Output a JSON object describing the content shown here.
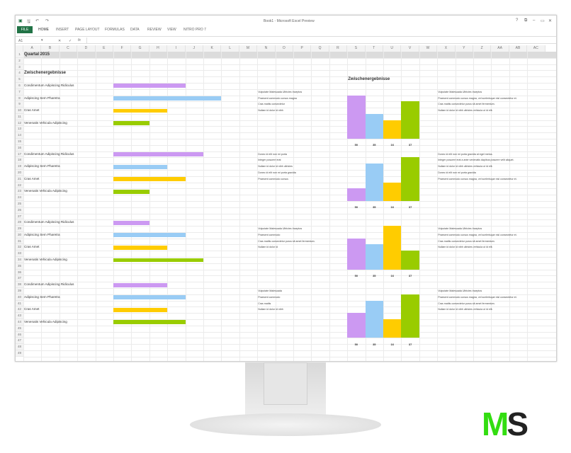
{
  "window": {
    "title": "Book1 - Microsoft Excel Preview",
    "controls": [
      "?",
      "⧉",
      "–",
      "▭",
      "✕"
    ]
  },
  "ribbon": {
    "file": "FILE",
    "tabs": [
      "HOME",
      "INSERT",
      "PAGE LAYOUT",
      "FORMULAS",
      "DATA",
      "REVIEW",
      "VIEW",
      "NITRO PRO 7"
    ]
  },
  "formula_bar": {
    "name_box": "A1",
    "fx": "fx",
    "value": ""
  },
  "columns": [
    "A",
    "B",
    "C",
    "D",
    "E",
    "F",
    "G",
    "H",
    "I",
    "J",
    "K",
    "L",
    "M",
    "N",
    "O",
    "P",
    "Q",
    "R",
    "S",
    "T",
    "U",
    "V",
    "W",
    "X",
    "Y",
    "Z",
    "AA",
    "AB",
    "AC"
  ],
  "row_count": 49,
  "colors": {
    "purple": "#cc99f2",
    "blue": "#99ccf5",
    "yellow": "#ffcc00",
    "green": "#99cc00",
    "accent": "#217346"
  },
  "cells": [
    {
      "row": 1,
      "col": "A",
      "text": "Quartal 2015",
      "style": "bold"
    },
    {
      "row": 4,
      "col": "A",
      "text": "Zwischenergebnisse",
      "style": "bold"
    },
    {
      "row": 5,
      "col": "S",
      "text": "Zwischenergebnisse",
      "style": "bold"
    },
    {
      "row": 6,
      "col": "A",
      "text": "Condimentum Adipiscing Ridiculus"
    },
    {
      "row": 8,
      "col": "A",
      "text": "Adipiscing Sem Pharetra"
    },
    {
      "row": 10,
      "col": "A",
      "text": "Cras Amet"
    },
    {
      "row": 12,
      "col": "A",
      "text": "Venenatis Vehicula Adipiscing"
    },
    {
      "row": 17,
      "col": "A",
      "text": "Condimentum Adipiscing Ridiculus"
    },
    {
      "row": 19,
      "col": "A",
      "text": "Adipiscing Sem Pharetra"
    },
    {
      "row": 21,
      "col": "A",
      "text": "Cras Amet"
    },
    {
      "row": 23,
      "col": "A",
      "text": "Venenatis Vehicula Adipiscing"
    },
    {
      "row": 28,
      "col": "A",
      "text": "Condimentum Adipiscing Ridiculus"
    },
    {
      "row": 30,
      "col": "A",
      "text": "Adipiscing Sem Pharetra"
    },
    {
      "row": 32,
      "col": "A",
      "text": "Cras Amet"
    },
    {
      "row": 34,
      "col": "A",
      "text": "Venenatis Vehicula Adipiscing"
    },
    {
      "row": 38,
      "col": "A",
      "text": "Condimentum Adipiscing Ridiculus"
    },
    {
      "row": 40,
      "col": "A",
      "text": "Adipiscing Sem Pharetra"
    },
    {
      "row": 42,
      "col": "A",
      "text": "Cras Amet"
    },
    {
      "row": 44,
      "col": "A",
      "text": "Venenatis Vehicula Adipiscing"
    },
    {
      "row": 7,
      "col": "N",
      "text": "Vulputate Malesuada Ultricies Inceptos",
      "style": "small"
    },
    {
      "row": 8,
      "col": "N",
      "text": "Praesent commodo cursus magna",
      "style": "small"
    },
    {
      "row": 9,
      "col": "N",
      "text": "Cras mattis consectetur",
      "style": "small"
    },
    {
      "row": 10,
      "col": "N",
      "text": "Nullam id dolor id nibh",
      "style": "small"
    },
    {
      "row": 7,
      "col": "X",
      "text": "Vulputate Malesuada Ultricies Inceptos",
      "style": "small"
    },
    {
      "row": 8,
      "col": "X",
      "text": "Praesent commodo cursus magna, vel scelerisque nisl consectetur et.",
      "style": "small"
    },
    {
      "row": 9,
      "col": "X",
      "text": "Cras mattis consectetur purus sit amet fermentum.",
      "style": "small"
    },
    {
      "row": 10,
      "col": "X",
      "text": "Nullam id dolor id nibh ultricies vehicula ut id elit.",
      "style": "small"
    },
    {
      "row": 17,
      "col": "N",
      "text": "Donec id elit non mi porta",
      "style": "small"
    },
    {
      "row": 18,
      "col": "N",
      "text": "Integer posuere erat",
      "style": "small"
    },
    {
      "row": 19,
      "col": "N",
      "text": "Nullam id dolor id nibh ultricies",
      "style": "small"
    },
    {
      "row": 20,
      "col": "N",
      "text": "Donec id elit non mi porta gravida",
      "style": "small"
    },
    {
      "row": 21,
      "col": "N",
      "text": "Praesent commodo cursus",
      "style": "small"
    },
    {
      "row": 17,
      "col": "X",
      "text": "Donec id elit non mi porta gravida at eget metus.",
      "style": "small"
    },
    {
      "row": 18,
      "col": "X",
      "text": "Integer posuere erat a ante venenatis dapibus posuere velit aliquet.",
      "style": "small"
    },
    {
      "row": 19,
      "col": "X",
      "text": "Nullam id dolor id nibh ultricies vehicula ut id elit.",
      "style": "small"
    },
    {
      "row": 20,
      "col": "X",
      "text": "Donec id elit non mi porta gravida",
      "style": "small"
    },
    {
      "row": 21,
      "col": "X",
      "text": "Praesent commodo cursus magna, vel scelerisque nisl consectetur et.",
      "style": "small"
    },
    {
      "row": 29,
      "col": "N",
      "text": "Vulputate Malesuada Ultricies Inceptos",
      "style": "small"
    },
    {
      "row": 30,
      "col": "N",
      "text": "Praesent commodo",
      "style": "small"
    },
    {
      "row": 31,
      "col": "N",
      "text": "Cras mattis consectetur purus sit amet fermentum.",
      "style": "small"
    },
    {
      "row": 32,
      "col": "N",
      "text": "Nullam id dolor id",
      "style": "small"
    },
    {
      "row": 29,
      "col": "X",
      "text": "Vulputate Malesuada Ultricies Inceptos",
      "style": "small"
    },
    {
      "row": 30,
      "col": "X",
      "text": "Praesent commodo cursus magna, vel scelerisque nisl consectetur et.",
      "style": "small"
    },
    {
      "row": 31,
      "col": "X",
      "text": "Cras mattis consectetur purus sit amet fermentum.",
      "style": "small"
    },
    {
      "row": 32,
      "col": "X",
      "text": "Nullam id dolor id nibh ultricies vehicula ut id elit.",
      "style": "small"
    },
    {
      "row": 39,
      "col": "N",
      "text": "Vulputate Malesuada",
      "style": "small"
    },
    {
      "row": 40,
      "col": "N",
      "text": "Praesent commodo",
      "style": "small"
    },
    {
      "row": 41,
      "col": "N",
      "text": "Cras mattis",
      "style": "small"
    },
    {
      "row": 42,
      "col": "N",
      "text": "Nullam id dolor id nibh",
      "style": "small"
    },
    {
      "row": 39,
      "col": "X",
      "text": "Vulputate Malesuada Ultricies Inceptos",
      "style": "small"
    },
    {
      "row": 40,
      "col": "X",
      "text": "Praesent commodo cursus magna, vel scelerisque nisl consectetur et.",
      "style": "small"
    },
    {
      "row": 41,
      "col": "X",
      "text": "Cras mattis consectetur purus sit amet fermentum.",
      "style": "small"
    },
    {
      "row": 42,
      "col": "X",
      "text": "Nullam id dolor id nibh ultricies vehicula ut id elit.",
      "style": "small"
    }
  ],
  "bar_groups": [
    {
      "rows": [
        6,
        8,
        10,
        12
      ],
      "values": [
        4,
        6,
        3,
        2
      ]
    },
    {
      "rows": [
        17,
        19,
        21,
        23
      ],
      "values": [
        5,
        3,
        4,
        2
      ]
    },
    {
      "rows": [
        28,
        30,
        32,
        34
      ],
      "values": [
        2,
        4,
        3,
        5
      ]
    },
    {
      "rows": [
        38,
        40,
        42,
        44
      ],
      "values": [
        3,
        4,
        3,
        4
      ]
    }
  ],
  "chart_data": [
    {
      "type": "bar",
      "baseline_row": 14,
      "categories": [
        "50",
        "35",
        "16",
        "37"
      ],
      "values": [
        7,
        4,
        3,
        6
      ]
    },
    {
      "type": "bar",
      "baseline_row": 24,
      "categories": [
        "50",
        "35",
        "16",
        "37"
      ],
      "values": [
        2,
        6,
        3,
        7
      ]
    },
    {
      "type": "bar",
      "baseline_row": 35,
      "categories": [
        "50",
        "35",
        "16",
        "37"
      ],
      "values": [
        5,
        4,
        7,
        3
      ]
    },
    {
      "type": "bar",
      "baseline_row": 46,
      "categories": [
        "50",
        "35",
        "16",
        "37"
      ],
      "values": [
        4,
        6,
        3,
        7
      ]
    }
  ],
  "logo": {
    "text_m": "M",
    "text_s": "S"
  }
}
